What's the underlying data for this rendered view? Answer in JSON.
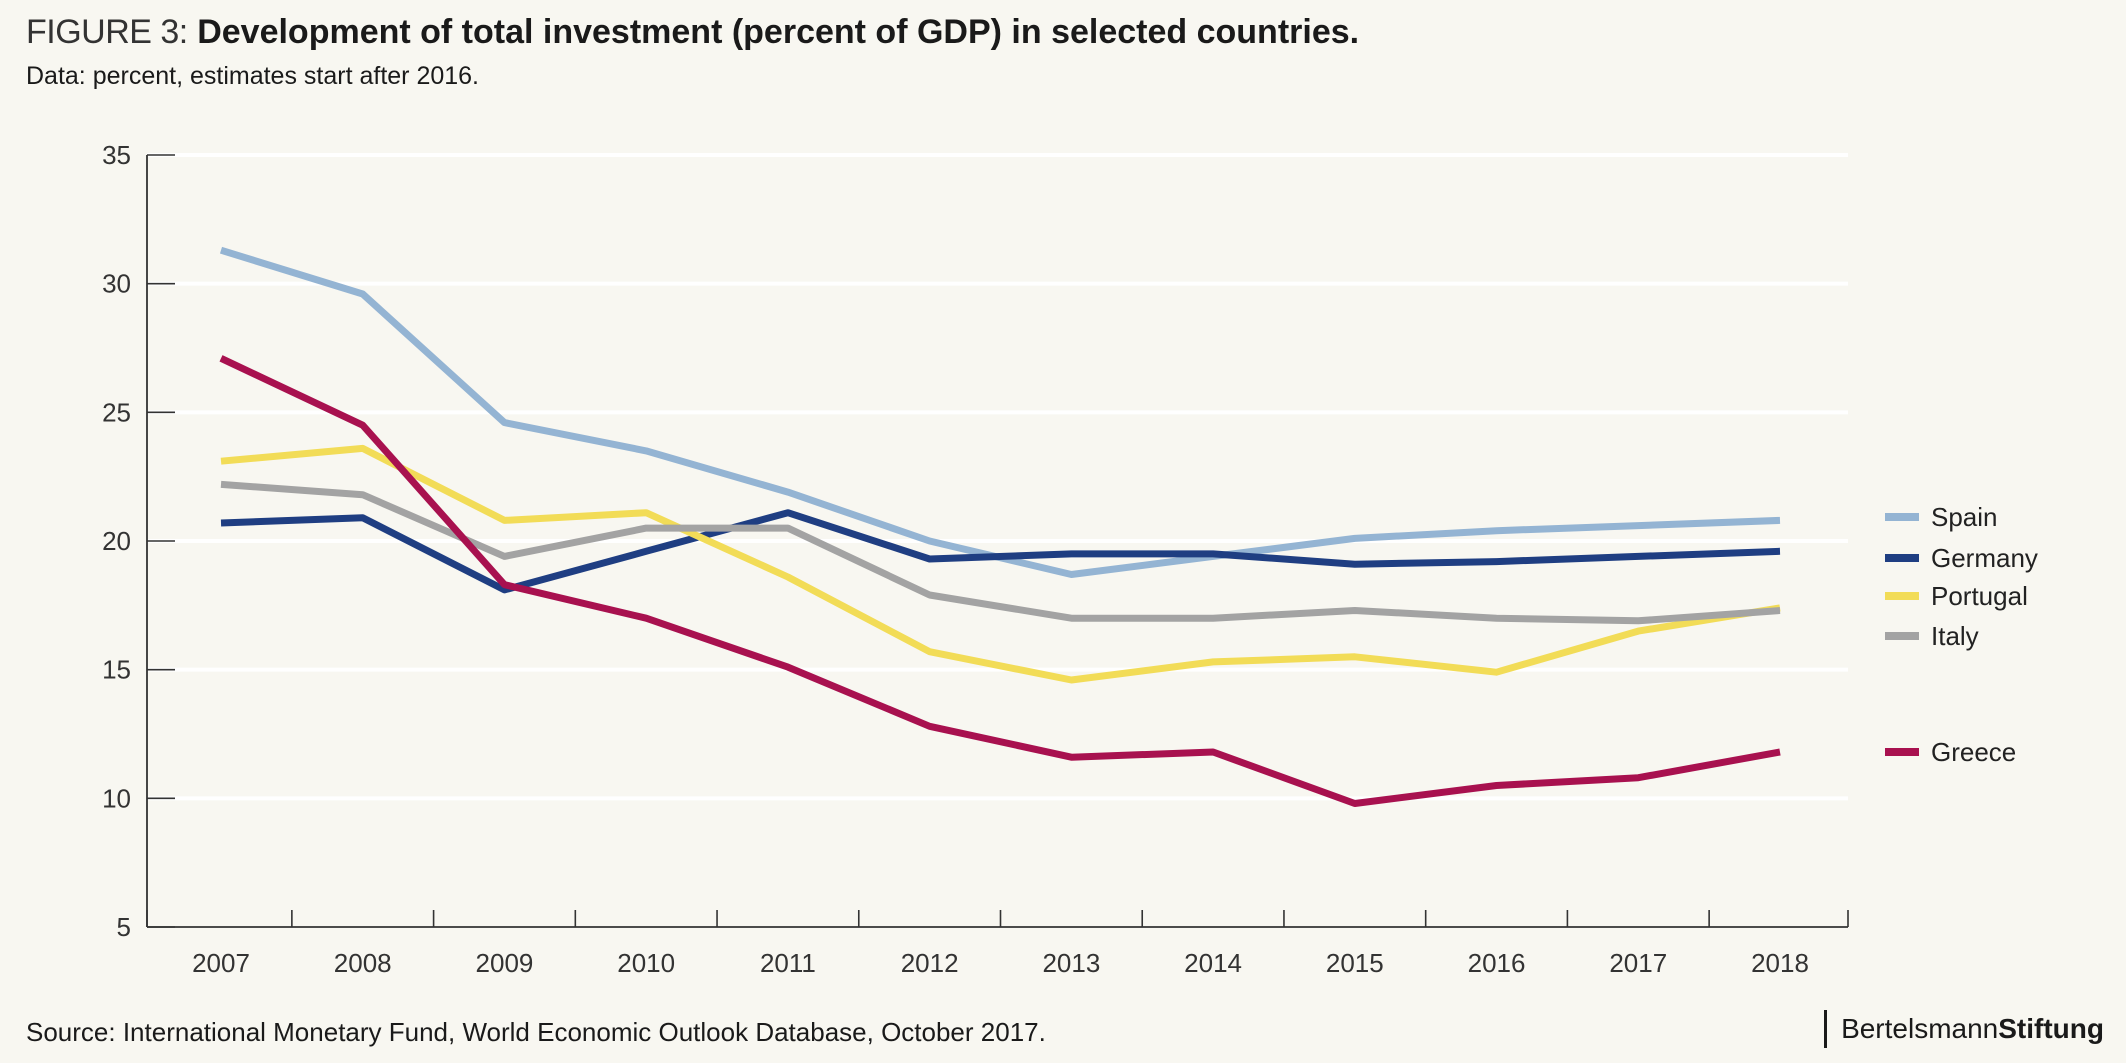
{
  "header": {
    "prefix": "FIGURE 3:",
    "title": "Development of total investment (percent of GDP) in selected countries.",
    "subtitle": "Data: percent, estimates start after 2016."
  },
  "footer": {
    "source": "Source: International Monetary Fund, World Economic Outlook Database, October 2017.",
    "brand_regular": "Bertelsmann",
    "brand_bold": "Stiftung"
  },
  "chart_data": {
    "type": "line",
    "title": "Development of total investment (percent of GDP) in selected countries.",
    "subtitle": "Data: percent, estimates start after 2016.",
    "xlabel": "",
    "ylabel": "",
    "x": [
      "2007",
      "2008",
      "2009",
      "2010",
      "2011",
      "2012",
      "2013",
      "2014",
      "2015",
      "2016",
      "2017",
      "2018"
    ],
    "ylim": [
      5,
      35
    ],
    "yticks": [
      5,
      10,
      15,
      20,
      25,
      30,
      35
    ],
    "grid": "horizontal",
    "legend_position": "right",
    "series": [
      {
        "name": "Spain",
        "color": "#94b4d3",
        "values": [
          31.3,
          29.6,
          24.6,
          23.5,
          21.9,
          20.0,
          18.7,
          19.4,
          20.1,
          20.4,
          20.6,
          20.8
        ]
      },
      {
        "name": "Germany",
        "color": "#1f3e82",
        "values": [
          20.7,
          20.9,
          18.1,
          19.6,
          21.1,
          19.3,
          19.5,
          19.5,
          19.1,
          19.2,
          19.4,
          19.6
        ]
      },
      {
        "name": "Portugal",
        "color": "#f2dc57",
        "values": [
          23.1,
          23.6,
          20.8,
          21.1,
          18.6,
          15.7,
          14.6,
          15.3,
          15.5,
          14.9,
          16.5,
          17.4
        ]
      },
      {
        "name": "Italy",
        "color": "#a3a3a3",
        "values": [
          22.2,
          21.8,
          19.4,
          20.5,
          20.5,
          17.9,
          17.0,
          17.0,
          17.3,
          17.0,
          16.9,
          17.3
        ]
      },
      {
        "name": "Greece",
        "color": "#a8114f",
        "values": [
          27.1,
          24.5,
          18.3,
          17.0,
          15.1,
          12.8,
          11.6,
          11.8,
          9.8,
          10.5,
          10.8,
          11.8
        ]
      }
    ]
  }
}
